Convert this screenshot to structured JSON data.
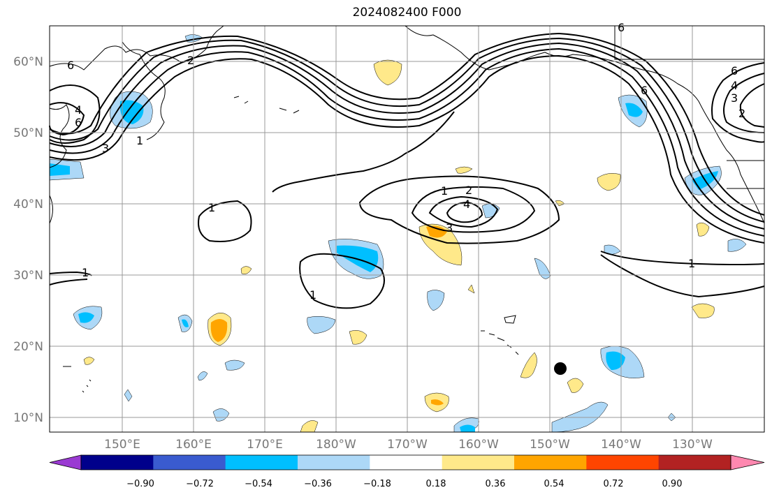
{
  "title": "2024082400 F000",
  "lat_labels": [
    "60°N",
    "50°N",
    "40°N",
    "30°N",
    "20°N",
    "10°N"
  ],
  "lon_labels": [
    "150°E",
    "160°E",
    "170°E",
    "180°W",
    "170°W",
    "160°W",
    "150°W",
    "140°W",
    "130°W"
  ],
  "colorbar": {
    "ticks": [
      "−0.90",
      "−0.72",
      "−0.54",
      "−0.36",
      "−0.18",
      "0.18",
      "0.36",
      "0.54",
      "0.72",
      "0.90"
    ],
    "colors": [
      "#9a3ad2",
      "#00008b",
      "#3a5bcf",
      "#00bfff",
      "#add8f7",
      "#ffffff",
      "#ffe98a",
      "#ffa500",
      "#ff4500",
      "#b22222",
      "#ff88b0"
    ]
  },
  "contour_labels": [
    {
      "text": "6"
    },
    {
      "text": "4"
    },
    {
      "text": "6"
    },
    {
      "text": "3"
    },
    {
      "text": "1"
    },
    {
      "text": "2"
    },
    {
      "text": "1"
    },
    {
      "text": "1"
    },
    {
      "text": "1"
    },
    {
      "text": "1"
    },
    {
      "text": "2"
    },
    {
      "text": "4"
    },
    {
      "text": "3"
    },
    {
      "text": "1"
    },
    {
      "text": "6"
    },
    {
      "text": "6"
    },
    {
      "text": "4"
    },
    {
      "text": "3"
    },
    {
      "text": "2"
    },
    {
      "text": "6"
    }
  ]
}
